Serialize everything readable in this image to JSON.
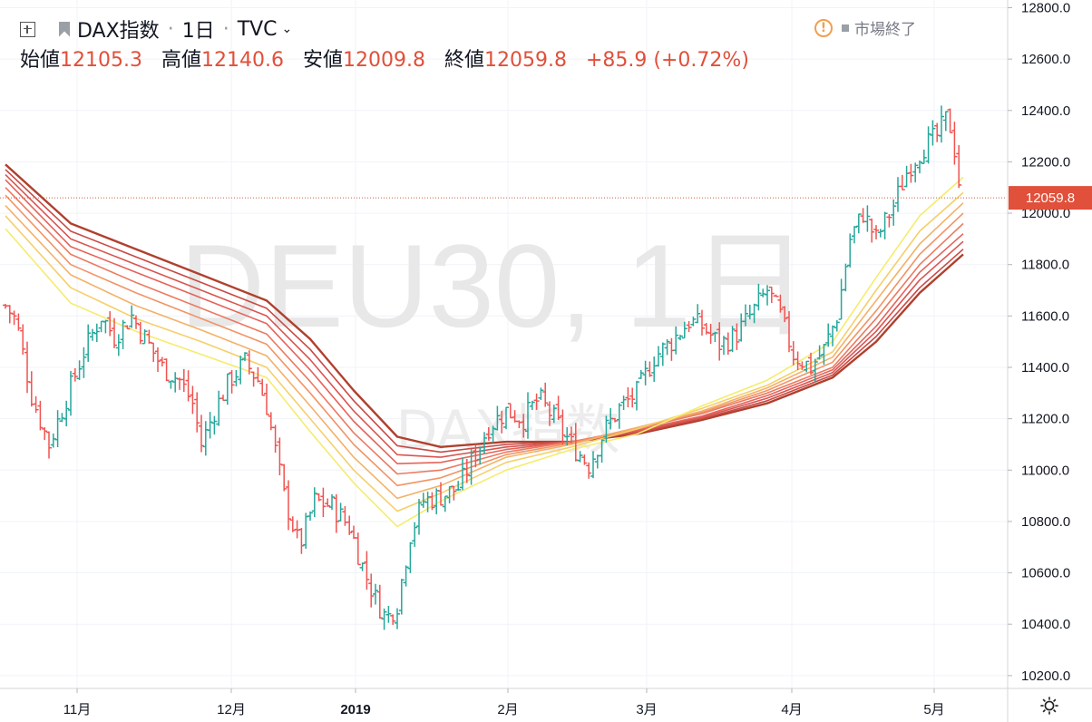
{
  "header": {
    "symbol_name": "DAX指数",
    "interval": "1日",
    "exchange": "TVC",
    "ohlc": {
      "open_label": "始値",
      "open": "12105.3",
      "high_label": "高値",
      "high": "12140.6",
      "low_label": "安値",
      "low": "12009.8",
      "close_label": "終値",
      "close": "12059.8",
      "change": "+85.9 (+0.72%)"
    },
    "market_status": "市場終了"
  },
  "watermark": {
    "line1": "DEU30, 1日",
    "line2": "DAX指数"
  },
  "colors": {
    "up": "#26a69a",
    "down": "#ef5350",
    "price_tag": "#e0503a",
    "ribbon": [
      "#f5ec6e",
      "#f5cf6a",
      "#f3b167",
      "#f19465",
      "#ec7a60",
      "#e5635a",
      "#d95551",
      "#c84a45",
      "#b0402e"
    ]
  },
  "chart_data": {
    "type": "line",
    "title": "",
    "xlabel": "",
    "ylabel": "",
    "ylim": [
      10150,
      12830
    ],
    "y_ticks": [
      "12800.0",
      "12600.0",
      "12400.0",
      "12200.0",
      "12000.0",
      "11800.0",
      "11600.0",
      "11400.0",
      "11200.0",
      "11000.0",
      "10800.0",
      "10600.0",
      "10400.0",
      "10200.0"
    ],
    "x_ticks": [
      "11月",
      "12月",
      "2019",
      "2月",
      "3月",
      "4月",
      "5月"
    ],
    "last_price_label": "12059.8",
    "last_price": 12059.8,
    "price_bars": [
      {
        "x": 0.0,
        "y": 11640
      },
      {
        "x": 0.5,
        "y": 11580
      },
      {
        "x": 1.2,
        "y": 11290
      },
      {
        "x": 2.0,
        "y": 11100
      },
      {
        "x": 2.8,
        "y": 11280
      },
      {
        "x": 3.6,
        "y": 11460
      },
      {
        "x": 4.4,
        "y": 11600
      },
      {
        "x": 5.0,
        "y": 11520
      },
      {
        "x": 5.8,
        "y": 11600
      },
      {
        "x": 6.5,
        "y": 11500
      },
      {
        "x": 7.2,
        "y": 11400
      },
      {
        "x": 8.0,
        "y": 11350
      },
      {
        "x": 8.6,
        "y": 11260
      },
      {
        "x": 9.0,
        "y": 11100
      },
      {
        "x": 9.6,
        "y": 11230
      },
      {
        "x": 10.3,
        "y": 11350
      },
      {
        "x": 11.0,
        "y": 11420
      },
      {
        "x": 11.6,
        "y": 11350
      },
      {
        "x": 12.0,
        "y": 11250
      },
      {
        "x": 12.8,
        "y": 10900
      },
      {
        "x": 13.5,
        "y": 10700
      },
      {
        "x": 14.2,
        "y": 10880
      },
      {
        "x": 15.0,
        "y": 10860
      },
      {
        "x": 15.8,
        "y": 10780
      },
      {
        "x": 16.5,
        "y": 10600
      },
      {
        "x": 17.0,
        "y": 10500
      },
      {
        "x": 17.5,
        "y": 10420
      },
      {
        "x": 18.0,
        "y": 10480
      },
      {
        "x": 18.6,
        "y": 10750
      },
      {
        "x": 19.2,
        "y": 10880
      },
      {
        "x": 20.0,
        "y": 10900
      },
      {
        "x": 20.8,
        "y": 10930
      },
      {
        "x": 21.5,
        "y": 11050
      },
      {
        "x": 22.2,
        "y": 11170
      },
      {
        "x": 23.0,
        "y": 11230
      },
      {
        "x": 23.8,
        "y": 11200
      },
      {
        "x": 24.5,
        "y": 11280
      },
      {
        "x": 25.2,
        "y": 11200
      },
      {
        "x": 26.0,
        "y": 11100
      },
      {
        "x": 26.8,
        "y": 11020
      },
      {
        "x": 27.5,
        "y": 11150
      },
      {
        "x": 28.2,
        "y": 11240
      },
      {
        "x": 29.0,
        "y": 11300
      },
      {
        "x": 29.8,
        "y": 11440
      },
      {
        "x": 30.6,
        "y": 11500
      },
      {
        "x": 31.4,
        "y": 11580
      },
      {
        "x": 32.0,
        "y": 11560
      },
      {
        "x": 32.8,
        "y": 11490
      },
      {
        "x": 33.5,
        "y": 11520
      },
      {
        "x": 34.2,
        "y": 11600
      },
      {
        "x": 35.0,
        "y": 11700
      },
      {
        "x": 35.6,
        "y": 11600
      },
      {
        "x": 36.2,
        "y": 11450
      },
      {
        "x": 37.0,
        "y": 11400
      },
      {
        "x": 37.6,
        "y": 11470
      },
      {
        "x": 38.2,
        "y": 11600
      },
      {
        "x": 38.8,
        "y": 11900
      },
      {
        "x": 39.4,
        "y": 12000
      },
      {
        "x": 40.0,
        "y": 11900
      },
      {
        "x": 40.8,
        "y": 12030
      },
      {
        "x": 41.5,
        "y": 12180
      },
      {
        "x": 42.2,
        "y": 12260
      },
      {
        "x": 42.8,
        "y": 12300
      },
      {
        "x": 43.3,
        "y": 12380
      },
      {
        "x": 43.6,
        "y": 12250
      },
      {
        "x": 43.9,
        "y": 12060
      }
    ],
    "series": [
      {
        "x": [
          0,
          3,
          6,
          9,
          12,
          14,
          16,
          18,
          20,
          23,
          26,
          29,
          32,
          35,
          38,
          40,
          42,
          44
        ],
        "values": [
          11940,
          11650,
          11540,
          11450,
          11360,
          11150,
          10950,
          10780,
          10880,
          11000,
          11080,
          11140,
          11250,
          11350,
          11500,
          11750,
          11990,
          12140
        ]
      },
      {
        "x": [
          0,
          3,
          6,
          9,
          12,
          14,
          16,
          18,
          20,
          23,
          26,
          29,
          32,
          35,
          38,
          40,
          42,
          44
        ],
        "values": [
          11990,
          11710,
          11590,
          11500,
          11400,
          11200,
          11000,
          10840,
          10910,
          11030,
          11090,
          11160,
          11240,
          11330,
          11460,
          11700,
          11930,
          12080
        ]
      },
      {
        "x": [
          0,
          3,
          6,
          9,
          12,
          14,
          16,
          18,
          20,
          23,
          26,
          29,
          32,
          35,
          38,
          40,
          42,
          44
        ],
        "values": [
          12030,
          11760,
          11640,
          11545,
          11445,
          11250,
          11050,
          10890,
          10940,
          11050,
          11100,
          11165,
          11230,
          11320,
          11440,
          11660,
          11880,
          12040
        ]
      },
      {
        "x": [
          0,
          3,
          6,
          9,
          12,
          14,
          16,
          18,
          20,
          23,
          26,
          29,
          32,
          35,
          38,
          40,
          42,
          44
        ],
        "values": [
          12070,
          11800,
          11690,
          11590,
          11490,
          11300,
          11100,
          10940,
          10970,
          11060,
          11105,
          11165,
          11225,
          11310,
          11420,
          11620,
          11840,
          12000
        ]
      },
      {
        "x": [
          0,
          3,
          6,
          9,
          12,
          14,
          16,
          18,
          20,
          23,
          26,
          29,
          32,
          35,
          38,
          40,
          42,
          44
        ],
        "values": [
          12100,
          11840,
          11730,
          11630,
          11530,
          11345,
          11145,
          10985,
          11000,
          11070,
          11110,
          11160,
          11220,
          11300,
          11400,
          11590,
          11800,
          11960
        ]
      },
      {
        "x": [
          0,
          3,
          6,
          9,
          12,
          14,
          16,
          18,
          20,
          23,
          26,
          29,
          32,
          35,
          38,
          40,
          42,
          44
        ],
        "values": [
          12130,
          11870,
          11770,
          11670,
          11570,
          11390,
          11190,
          11025,
          11030,
          11080,
          11110,
          11155,
          11210,
          11290,
          11390,
          11560,
          11770,
          11920
        ]
      },
      {
        "x": [
          0,
          3,
          6,
          9,
          12,
          14,
          16,
          18,
          20,
          23,
          26,
          29,
          32,
          35,
          38,
          40,
          42,
          44
        ],
        "values": [
          12150,
          11900,
          11800,
          11700,
          11600,
          11430,
          11230,
          11060,
          11050,
          11090,
          11110,
          11150,
          11205,
          11280,
          11380,
          11540,
          11740,
          11890
        ]
      },
      {
        "x": [
          0,
          3,
          6,
          9,
          12,
          14,
          16,
          18,
          20,
          23,
          26,
          29,
          32,
          35,
          38,
          40,
          42,
          44
        ],
        "values": [
          12170,
          11930,
          11830,
          11730,
          11630,
          11470,
          11270,
          11095,
          11070,
          11100,
          11110,
          11145,
          11200,
          11270,
          11370,
          11520,
          11710,
          11860
        ]
      },
      {
        "x": [
          0,
          3,
          6,
          9,
          12,
          14,
          16,
          18,
          20,
          23,
          26,
          29,
          32,
          35,
          38,
          40,
          42,
          44
        ],
        "values": [
          12190,
          11960,
          11860,
          11760,
          11660,
          11510,
          11310,
          11130,
          11090,
          11110,
          11110,
          11140,
          11195,
          11260,
          11360,
          11500,
          11690,
          11840
        ]
      }
    ]
  }
}
